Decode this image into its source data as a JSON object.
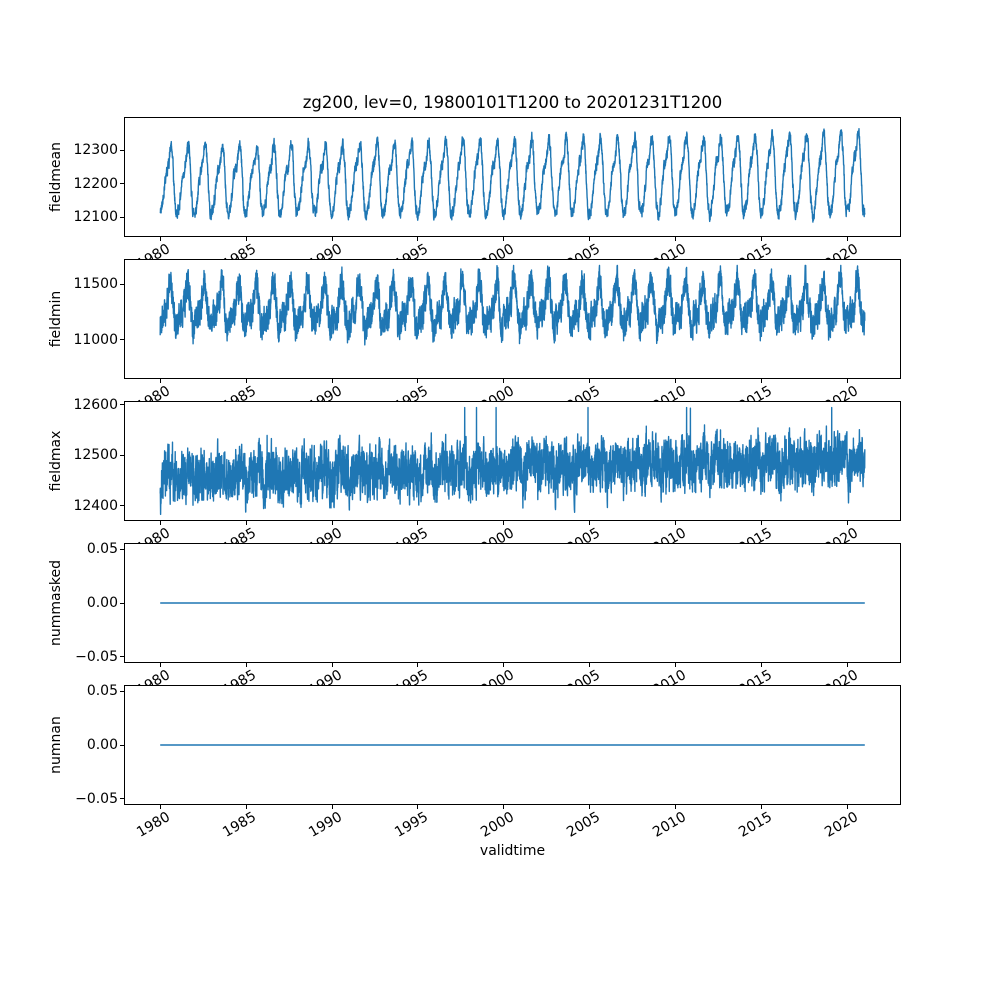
{
  "figure": {
    "title": "zg200, lev=0, 19800101T1200 to 20201231T1200",
    "xlabel": "validtime",
    "line_color": "#1f77b4",
    "background_color": "#ffffff",
    "text_color": "#000000",
    "axes_edge_color": "#000000"
  },
  "chart_data": [
    {
      "type": "line",
      "name": "fieldmean",
      "ylabel": "fieldmean",
      "x_range": [
        1980,
        2021
      ],
      "xlim": [
        1977.95,
        2023.05
      ],
      "xticks": [
        1980,
        1985,
        1990,
        1995,
        2000,
        2005,
        2010,
        2015,
        2020
      ],
      "xtick_labels": [
        "1980",
        "1985",
        "1990",
        "1995",
        "2000",
        "2005",
        "2010",
        "2015",
        "2020"
      ],
      "ylim": [
        12045,
        12395
      ],
      "yticks": [
        12300,
        12200,
        12100
      ],
      "ytick_labels": [
        "12300",
        "12200",
        "12100"
      ],
      "grid": false,
      "legend": null,
      "summary": "Annual seasonal cycle oscillating roughly between 12080 and 12360 m, peaks rising slightly over 1980-2021",
      "gen": {
        "kind": "seasonal",
        "seed": 42,
        "base": 12205,
        "trend_per_year": 0.5,
        "amp1": 88,
        "amp1_growth": 0.55,
        "phase1": 0.54,
        "amp2": 26,
        "phase2": 0.18,
        "amp3": 10,
        "noise_ar": 0.55,
        "noise_scale": 15,
        "spike_prob": 0,
        "spike_size": 0,
        "points_per_year": 120,
        "clamp": [
          12061,
          12379
        ]
      }
    },
    {
      "type": "line",
      "name": "fieldmin",
      "ylabel": "fieldmin",
      "x_range": [
        1980,
        2021
      ],
      "xlim": [
        1977.95,
        2023.05
      ],
      "xticks": [
        1980,
        1985,
        1990,
        1995,
        2000,
        2005,
        2010,
        2015,
        2020
      ],
      "xtick_labels": [
        "1980",
        "1985",
        "1990",
        "1995",
        "2000",
        "2005",
        "2010",
        "2015",
        "2020"
      ],
      "ylim": [
        10655,
        11720
      ],
      "yticks": [
        11500,
        11000
      ],
      "ytick_labels": [
        "11500",
        "11000"
      ],
      "grid": false,
      "legend": null,
      "summary": "Very noisy annual cycle between roughly 10750 and 11650 m with occasional deep negative spikes",
      "gen": {
        "kind": "seasonal",
        "seed": 7,
        "base": 11285,
        "trend_per_year": 0.4,
        "amp1": 165,
        "amp1_growth": 0,
        "phase1": 0.54,
        "amp2": 75,
        "phase2": 0.1,
        "amp3": 0,
        "noise_ar": 0.5,
        "noise_scale": 110,
        "spike_prob": 0.0012,
        "spike_size": -150,
        "points_per_year": 150,
        "clamp": [
          10704,
          11671
        ]
      }
    },
    {
      "type": "line",
      "name": "fieldmax",
      "ylabel": "fieldmax",
      "x_range": [
        1980,
        2021
      ],
      "xlim": [
        1977.95,
        2023.05
      ],
      "xticks": [
        1980,
        1985,
        1990,
        1995,
        2000,
        2005,
        2010,
        2015,
        2020
      ],
      "xtick_labels": [
        "1980",
        "1985",
        "1990",
        "1995",
        "2000",
        "2005",
        "2010",
        "2015",
        "2020"
      ],
      "ylim": [
        12372,
        12605
      ],
      "yticks": [
        12600,
        12500,
        12400
      ],
      "ytick_labels": [
        "12600",
        "12500",
        "12400"
      ],
      "grid": false,
      "legend": null,
      "summary": "Noisy band around 12420-12540 m with upward spikes to ~12600 and a slight positive trend",
      "gen": {
        "kind": "seasonal",
        "seed": 99,
        "base": 12455,
        "trend_per_year": 0.85,
        "amp1": 10,
        "amp1_growth": 0,
        "phase1": 0.6,
        "amp2": 6,
        "phase2": 0.3,
        "amp3": 0,
        "noise_ar": 0.55,
        "noise_scale": 38,
        "spike_prob": 0.003,
        "spike_size": 70,
        "points_per_year": 150,
        "clamp": [
          12383,
          12594
        ]
      }
    },
    {
      "type": "line",
      "name": "nummasked",
      "ylabel": "nummasked",
      "x_range": [
        1980,
        2021
      ],
      "xlim": [
        1977.95,
        2023.05
      ],
      "xticks": [
        1980,
        1985,
        1990,
        1995,
        2000,
        2005,
        2010,
        2015,
        2020
      ],
      "xtick_labels": [
        "1980",
        "1985",
        "1990",
        "1995",
        "2000",
        "2005",
        "2010",
        "2015",
        "2020"
      ],
      "ylim": [
        -0.055,
        0.055
      ],
      "yticks": [
        0.05,
        0,
        -0.05
      ],
      "ytick_labels": [
        "0.05",
        "0.00",
        "−0.05"
      ],
      "grid": false,
      "legend": null,
      "summary": "Constant zero line for the full 1980-2021 period",
      "gen": {
        "kind": "constant",
        "value": 0
      }
    },
    {
      "type": "line",
      "name": "numnan",
      "ylabel": "numnan",
      "x_range": [
        1980,
        2021
      ],
      "xlim": [
        1977.95,
        2023.05
      ],
      "xticks": [
        1980,
        1985,
        1990,
        1995,
        2000,
        2005,
        2010,
        2015,
        2020
      ],
      "xtick_labels": [
        "1980",
        "1985",
        "1990",
        "1995",
        "2000",
        "2005",
        "2010",
        "2015",
        "2020"
      ],
      "ylim": [
        -0.055,
        0.055
      ],
      "yticks": [
        0.05,
        0,
        -0.05
      ],
      "ytick_labels": [
        "0.05",
        "0.00",
        "−0.05"
      ],
      "grid": false,
      "legend": null,
      "summary": "Constant zero line for the full 1980-2021 period",
      "gen": {
        "kind": "constant",
        "value": 0
      }
    }
  ]
}
